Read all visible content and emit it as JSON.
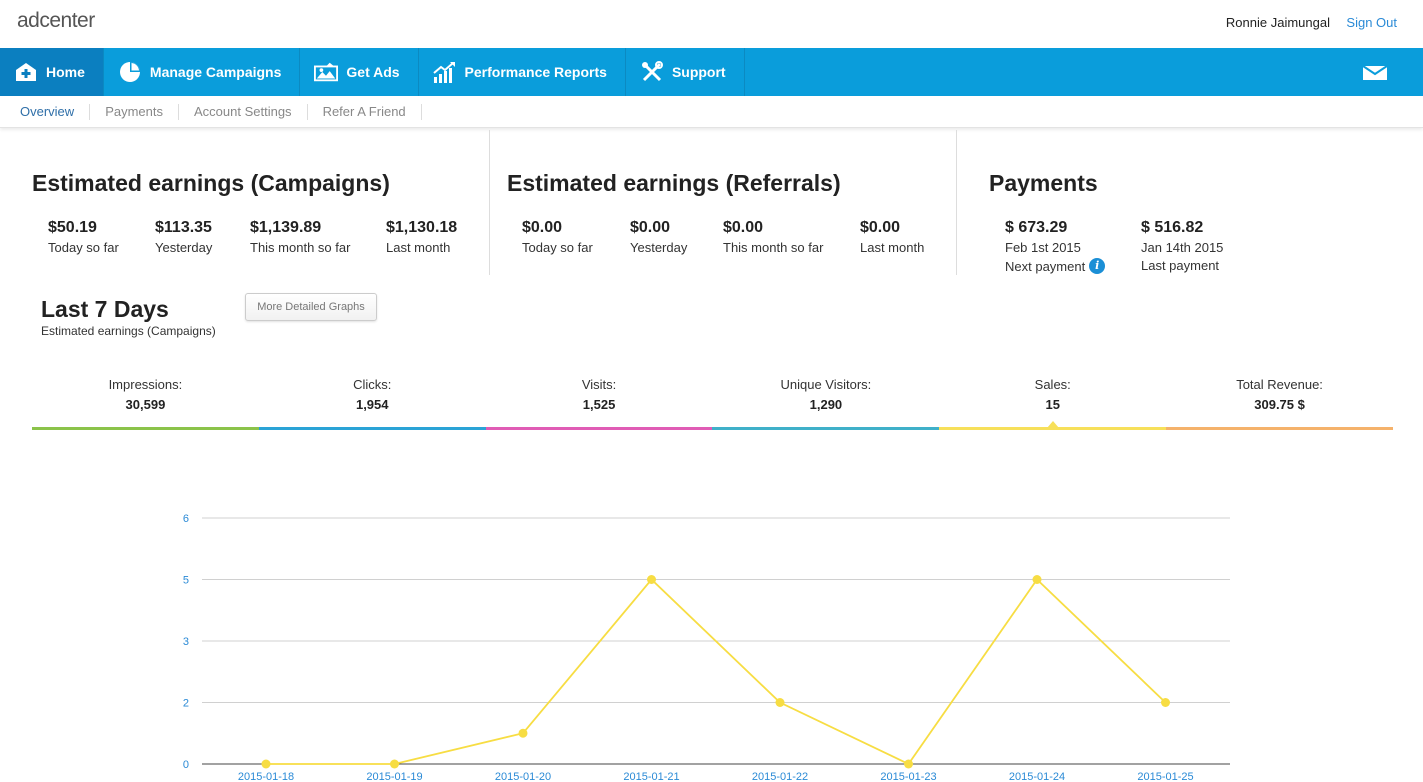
{
  "header": {
    "logo": "adcenter",
    "user_name": "Ronnie Jaimungal",
    "sign_out": "Sign Out"
  },
  "nav": {
    "items": [
      {
        "label": "Home",
        "icon": "home-icon"
      },
      {
        "label": "Manage Campaigns",
        "icon": "pie-chart-icon"
      },
      {
        "label": "Get Ads",
        "icon": "image-icon"
      },
      {
        "label": "Performance Reports",
        "icon": "bar-chart-icon"
      },
      {
        "label": "Support",
        "icon": "tools-icon"
      }
    ],
    "mail_icon": "mail-icon"
  },
  "subnav": {
    "items": [
      "Overview",
      "Payments",
      "Account Settings",
      "Refer A Friend"
    ]
  },
  "campaigns": {
    "title": "Estimated earnings (Campaigns)",
    "stats": [
      {
        "value": "$50.19",
        "label": "Today so far"
      },
      {
        "value": "$113.35",
        "label": "Yesterday"
      },
      {
        "value": "$1,139.89",
        "label": "This month so far"
      },
      {
        "value": "$1,130.18",
        "label": "Last month"
      }
    ]
  },
  "referrals": {
    "title": "Estimated earnings (Referrals)",
    "stats": [
      {
        "value": "$0.00",
        "label": "Today so far"
      },
      {
        "value": "$0.00",
        "label": "Yesterday"
      },
      {
        "value": "$0.00",
        "label": "This month so far"
      },
      {
        "value": "$0.00",
        "label": "Last month"
      }
    ]
  },
  "payments": {
    "title": "Payments",
    "stats": [
      {
        "value": "$ 673.29",
        "label": "Feb 1st 2015",
        "sub": "Next payment",
        "info": "i"
      },
      {
        "value": "$ 516.82",
        "label": "Jan 14th 2015",
        "sub": "Last payment"
      }
    ]
  },
  "last7": {
    "title": "Last 7 Days",
    "subtitle": "Estimated earnings (Campaigns)",
    "button": "More Detailed Graphs"
  },
  "metrics": [
    {
      "label": "Impressions:",
      "value": "30,599",
      "color": "#8bc34a"
    },
    {
      "label": "Clicks:",
      "value": "1,954",
      "color": "#2aa3d6"
    },
    {
      "label": "Visits:",
      "value": "1,525",
      "color": "#e05cb5"
    },
    {
      "label": "Unique Visitors:",
      "value": "1,290",
      "color": "#3fb0c9"
    },
    {
      "label": "Sales:",
      "value": "15",
      "color": "#f7e05a",
      "selected": true
    },
    {
      "label": "Total Revenue:",
      "value": "309.75 $",
      "color": "#f5b26b"
    }
  ],
  "chart_data": {
    "type": "line",
    "x": [
      "2015-01-18",
      "2015-01-19",
      "2015-01-20",
      "2015-01-21",
      "2015-01-22",
      "2015-01-23",
      "2015-01-24",
      "2015-01-25"
    ],
    "series": [
      {
        "values": [
          0,
          0,
          1,
          5,
          2,
          0,
          5,
          2
        ],
        "color": "#f7dd43"
      }
    ],
    "y_ticks": [
      0,
      2,
      3,
      5,
      6
    ],
    "y_tick_positions": [
      0,
      1,
      2,
      3,
      4
    ],
    "ylim": [
      0,
      6
    ],
    "grid": true,
    "title": "",
    "xlabel": "",
    "ylabel": "",
    "axis_label_color": "#2a8ad6"
  }
}
